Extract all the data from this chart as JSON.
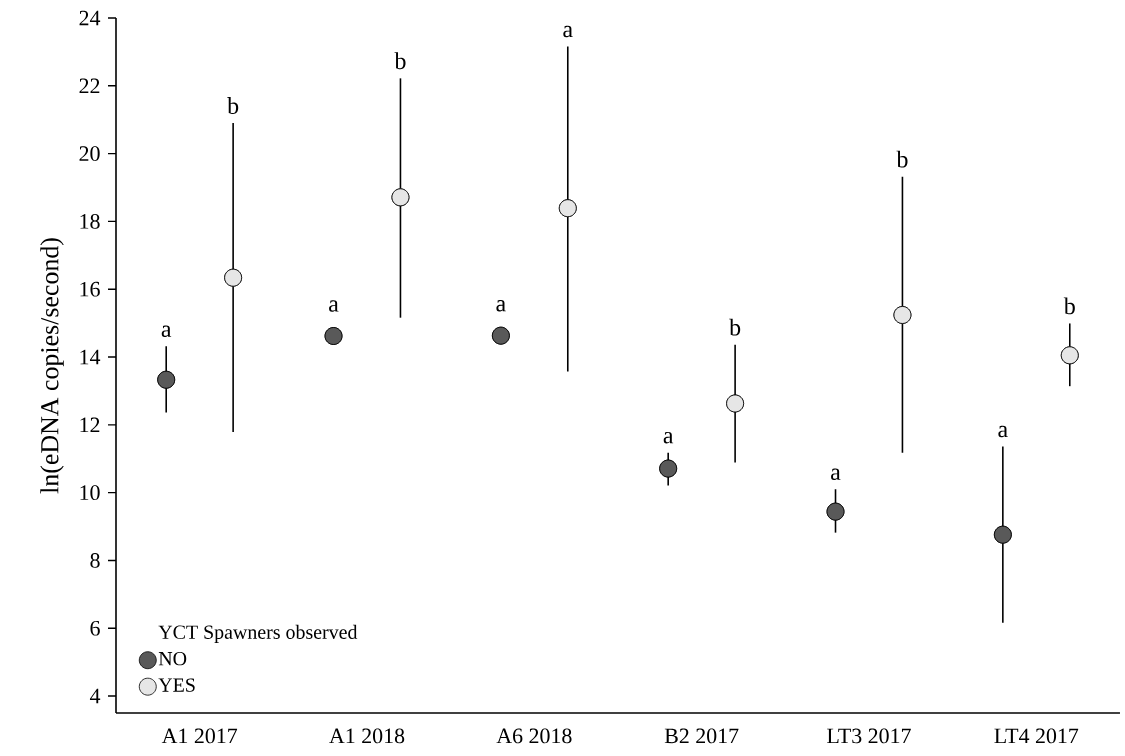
{
  "chart_data": {
    "type": "scatter",
    "ylabel": "ln(eDNA copies/second)",
    "legend_title": "YCT Spawners observed",
    "categories": [
      "A1 2017",
      "A1 2018",
      "A6 2018",
      "B2 2017",
      "LT3 2017",
      "LT4 2017"
    ],
    "series": [
      {
        "name": "NO",
        "color": "#595959",
        "values": [
          13.33,
          14.62,
          14.63,
          10.71,
          9.44,
          8.76
        ],
        "errors": [
          [
            12.36,
            14.32
          ],
          null,
          null,
          [
            10.21,
            11.18
          ],
          [
            8.82,
            10.1
          ],
          [
            6.16,
            11.36
          ]
        ]
      },
      {
        "name": "YES",
        "color": "#e6e6e6",
        "values": [
          16.34,
          18.71,
          18.39,
          12.63,
          15.24,
          14.05
        ],
        "errors": [
          [
            11.79,
            20.9
          ],
          [
            15.16,
            22.22
          ],
          [
            13.57,
            23.16
          ],
          [
            10.89,
            14.36
          ],
          [
            11.18,
            19.32
          ],
          [
            13.14,
            14.99
          ]
        ]
      }
    ],
    "annotations": [
      "a",
      "b",
      "a",
      "b",
      "a",
      "a",
      "a",
      "b",
      "a",
      "b",
      "a",
      "b"
    ],
    "ylim": [
      3.5,
      24
    ],
    "yticks": [
      4,
      6,
      8,
      10,
      12,
      14,
      16,
      18,
      20,
      22,
      24
    ],
    "grid": false,
    "legend": "bottom left"
  }
}
